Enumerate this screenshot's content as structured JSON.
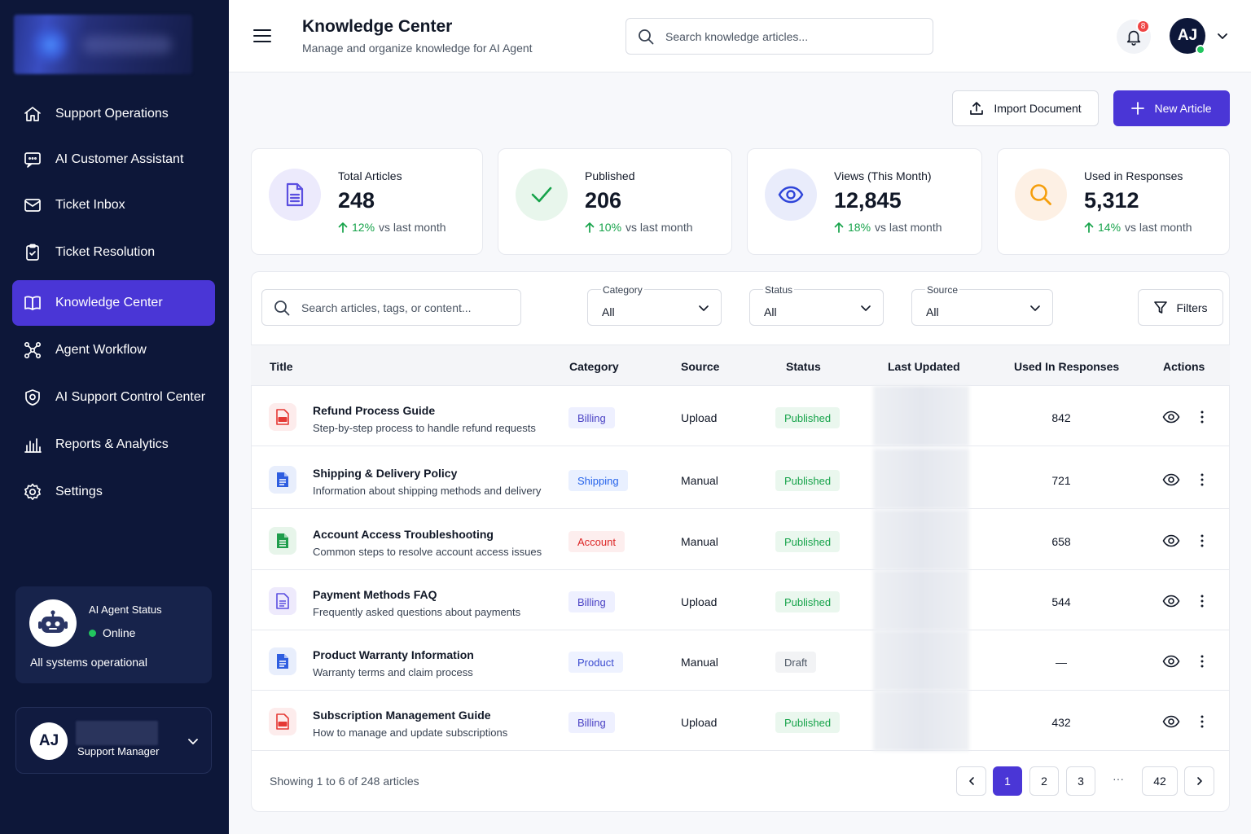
{
  "sidebar": {
    "items": [
      {
        "label": "Support Operations",
        "icon": "home-icon"
      },
      {
        "label": "AI Customer Assistant",
        "icon": "chat-icon"
      },
      {
        "label": "Ticket Inbox",
        "icon": "mail-icon"
      },
      {
        "label": "Ticket Resolution",
        "icon": "clipboard-check-icon"
      },
      {
        "label": "Knowledge Center",
        "icon": "book-icon"
      },
      {
        "label": "Agent Workflow",
        "icon": "workflow-icon"
      },
      {
        "label": "AI Support Control Center",
        "icon": "shield-icon"
      },
      {
        "label": "Reports & Analytics",
        "icon": "bar-chart-icon"
      },
      {
        "label": "Settings",
        "icon": "gear-icon"
      }
    ],
    "active_index": 4,
    "agent": {
      "title": "AI Agent Status",
      "status": "Online",
      "note": "All systems operational"
    },
    "user": {
      "initials": "AJ",
      "role": "Support Manager"
    }
  },
  "header": {
    "title": "Knowledge Center",
    "subtitle": "Manage and organize knowledge for AI Agent",
    "search_placeholder": "Search knowledge articles...",
    "notification_count": "8",
    "avatar_initials": "AJ"
  },
  "actions": {
    "import_label": "Import Document",
    "new_label": "New Article"
  },
  "stats": [
    {
      "label": "Total Articles",
      "value": "248",
      "pct": "12%",
      "suffix": "vs last month",
      "icon": "document-icon",
      "color": "#5b4fe0",
      "bg": "#eceafc"
    },
    {
      "label": "Published",
      "value": "206",
      "pct": "10%",
      "suffix": "vs last month",
      "icon": "check-icon",
      "color": "#16a34a",
      "bg": "#e8f6ec"
    },
    {
      "label": "Views (This Month)",
      "value": "12,845",
      "pct": "18%",
      "suffix": "vs last month",
      "icon": "eye-icon",
      "color": "#2f45d9",
      "bg": "#e9ecfb"
    },
    {
      "label": "Used in Responses",
      "value": "5,312",
      "pct": "14%",
      "suffix": "vs last month",
      "icon": "search-icon",
      "color": "#f59e0b",
      "bg": "#fdf0e4"
    }
  ],
  "filters": {
    "search_placeholder": "Search articles, tags, or content...",
    "category": {
      "label": "Category",
      "value": "All"
    },
    "status": {
      "label": "Status",
      "value": "All"
    },
    "source": {
      "label": "Source",
      "value": "All"
    },
    "filters_label": "Filters"
  },
  "table": {
    "columns": [
      "Title",
      "Category",
      "Source",
      "Status",
      "Last Updated",
      "Used In Responses",
      "Actions"
    ],
    "rows": [
      {
        "title": "Refund Process Guide",
        "desc": "Step-by-step process to handle refund requests",
        "category": "Billing",
        "cat_class": "cat-billing",
        "source": "Upload",
        "status": "Published",
        "status_class": "st-published",
        "used": "842",
        "file": "pdf"
      },
      {
        "title": "Shipping & Delivery Policy",
        "desc": "Information about shipping methods and delivery",
        "category": "Shipping",
        "cat_class": "cat-shipping",
        "source": "Manual",
        "status": "Published",
        "status_class": "st-published",
        "used": "721",
        "file": "doc-blue"
      },
      {
        "title": "Account Access Troubleshooting",
        "desc": "Common steps to resolve account access issues",
        "category": "Account",
        "cat_class": "cat-account",
        "source": "Manual",
        "status": "Published",
        "status_class": "st-published",
        "used": "658",
        "file": "doc-green"
      },
      {
        "title": "Payment Methods FAQ",
        "desc": "Frequently asked questions about payments",
        "category": "Billing",
        "cat_class": "cat-billing",
        "source": "Upload",
        "status": "Published",
        "status_class": "st-published",
        "used": "544",
        "file": "doc-purple"
      },
      {
        "title": "Product Warranty Information",
        "desc": "Warranty terms and claim process",
        "category": "Product",
        "cat_class": "cat-product",
        "source": "Manual",
        "status": "Draft",
        "status_class": "st-draft",
        "used": "—",
        "file": "doc-blue"
      },
      {
        "title": "Subscription Management Guide",
        "desc": "How to manage and update subscriptions",
        "category": "Billing",
        "cat_class": "cat-billing",
        "source": "Upload",
        "status": "Published",
        "status_class": "st-published",
        "used": "432",
        "file": "pdf"
      }
    ]
  },
  "pagination": {
    "showing": "Showing 1 to 6 of 248 articles",
    "pages": [
      "1",
      "2",
      "3",
      "42"
    ],
    "ellipsis": "···",
    "current": "1"
  }
}
